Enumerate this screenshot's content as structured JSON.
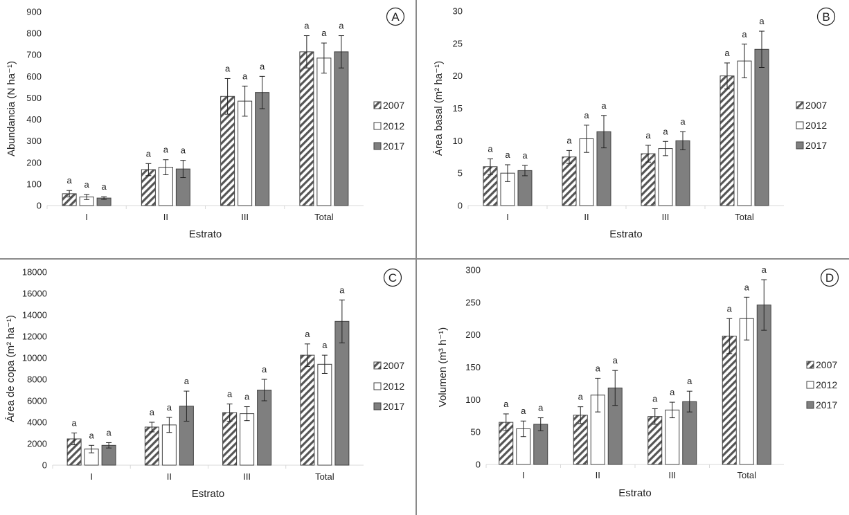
{
  "colors": {
    "s2007_stroke": "#555555",
    "s2012_fill": "#ffffff",
    "s2017_fill": "#7f7f7f",
    "bar_stroke": "#404040",
    "grid": "#d9d9d9"
  },
  "chart_data": [
    {
      "type": "bar",
      "panel_letter": "A",
      "title": "",
      "xlabel": "Estrato",
      "ylabel": "Abundancia (N ha⁻¹)",
      "categories": [
        "I",
        "II",
        "III",
        "Total"
      ],
      "ylim": [
        0,
        900
      ],
      "yticks": [
        0,
        100,
        200,
        300,
        400,
        500,
        600,
        700,
        800,
        900
      ],
      "legend_position": "right",
      "series": [
        {
          "name": "2007",
          "values": [
            55,
            167,
            507,
            714
          ],
          "errors": [
            15,
            28,
            83,
            75
          ],
          "labels": [
            "a",
            "a",
            "a",
            "a"
          ]
        },
        {
          "name": "2012",
          "values": [
            40,
            178,
            485,
            685
          ],
          "errors": [
            12,
            35,
            70,
            70
          ],
          "labels": [
            "a",
            "a",
            "a",
            "a"
          ]
        },
        {
          "name": "2017",
          "values": [
            35,
            170,
            525,
            714
          ],
          "errors": [
            6,
            40,
            75,
            75
          ],
          "labels": [
            "a",
            "a",
            "a",
            "a"
          ]
        }
      ]
    },
    {
      "type": "bar",
      "panel_letter": "B",
      "title": "",
      "xlabel": "Estrato",
      "ylabel": "Área basal (m² ha⁻¹)",
      "categories": [
        "I",
        "II",
        "III",
        "Total"
      ],
      "ylim": [
        0,
        30
      ],
      "yticks": [
        0,
        5,
        10,
        15,
        20,
        25,
        30
      ],
      "legend_position": "right",
      "series": [
        {
          "name": "2007",
          "values": [
            6.0,
            7.5,
            8.0,
            20.0
          ],
          "errors": [
            1.2,
            1.0,
            1.3,
            2.0
          ],
          "labels": [
            "a",
            "a",
            "a",
            "a"
          ]
        },
        {
          "name": "2012",
          "values": [
            5.0,
            10.3,
            8.8,
            22.3
          ],
          "errors": [
            1.3,
            2.1,
            1.1,
            2.6
          ],
          "labels": [
            "a",
            "a",
            "a",
            "a"
          ]
        },
        {
          "name": "2017",
          "values": [
            5.4,
            11.4,
            10.0,
            24.1
          ],
          "errors": [
            0.8,
            2.5,
            1.4,
            2.8
          ],
          "labels": [
            "a",
            "a",
            "a",
            "a"
          ]
        }
      ]
    },
    {
      "type": "bar",
      "panel_letter": "C",
      "title": "",
      "xlabel": "Estrato",
      "ylabel": "Área de copa (m² ha⁻¹)",
      "categories": [
        "I",
        "II",
        "III",
        "Total"
      ],
      "ylim": [
        0,
        18000
      ],
      "yticks": [
        0,
        2000,
        4000,
        6000,
        8000,
        10000,
        12000,
        14000,
        16000,
        18000
      ],
      "legend_position": "right",
      "series": [
        {
          "name": "2007",
          "values": [
            2450,
            3550,
            4900,
            10250
          ],
          "errors": [
            550,
            450,
            800,
            1050
          ],
          "labels": [
            "a",
            "a",
            "a",
            "a"
          ]
        },
        {
          "name": "2012",
          "values": [
            1500,
            3750,
            4800,
            9400
          ],
          "errors": [
            350,
            700,
            650,
            850
          ],
          "labels": [
            "a",
            "a",
            "a",
            "a"
          ]
        },
        {
          "name": "2017",
          "values": [
            1850,
            5500,
            7000,
            13400
          ],
          "errors": [
            250,
            1400,
            1000,
            2000
          ],
          "labels": [
            "a",
            "a",
            "a",
            "a"
          ]
        }
      ]
    },
    {
      "type": "bar",
      "panel_letter": "D",
      "title": "",
      "xlabel": "Estrato",
      "ylabel": "Volumen (m³ h⁻¹)",
      "categories": [
        "I",
        "II",
        "III",
        "Total"
      ],
      "ylim": [
        0,
        300
      ],
      "yticks": [
        0,
        50,
        100,
        150,
        200,
        250,
        300
      ],
      "legend_position": "right",
      "series": [
        {
          "name": "2007",
          "values": [
            65,
            76,
            74,
            198
          ],
          "errors": [
            13,
            13,
            12,
            27
          ],
          "labels": [
            "a",
            "a",
            "a",
            "a"
          ]
        },
        {
          "name": "2012",
          "values": [
            55,
            107,
            84,
            225
          ],
          "errors": [
            12,
            26,
            12,
            33
          ],
          "labels": [
            "a",
            "a",
            "a",
            "a"
          ]
        },
        {
          "name": "2017",
          "values": [
            62,
            118,
            97,
            246
          ],
          "errors": [
            10,
            27,
            16,
            39
          ],
          "labels": [
            "a",
            "a",
            "a",
            "a"
          ]
        }
      ]
    }
  ]
}
